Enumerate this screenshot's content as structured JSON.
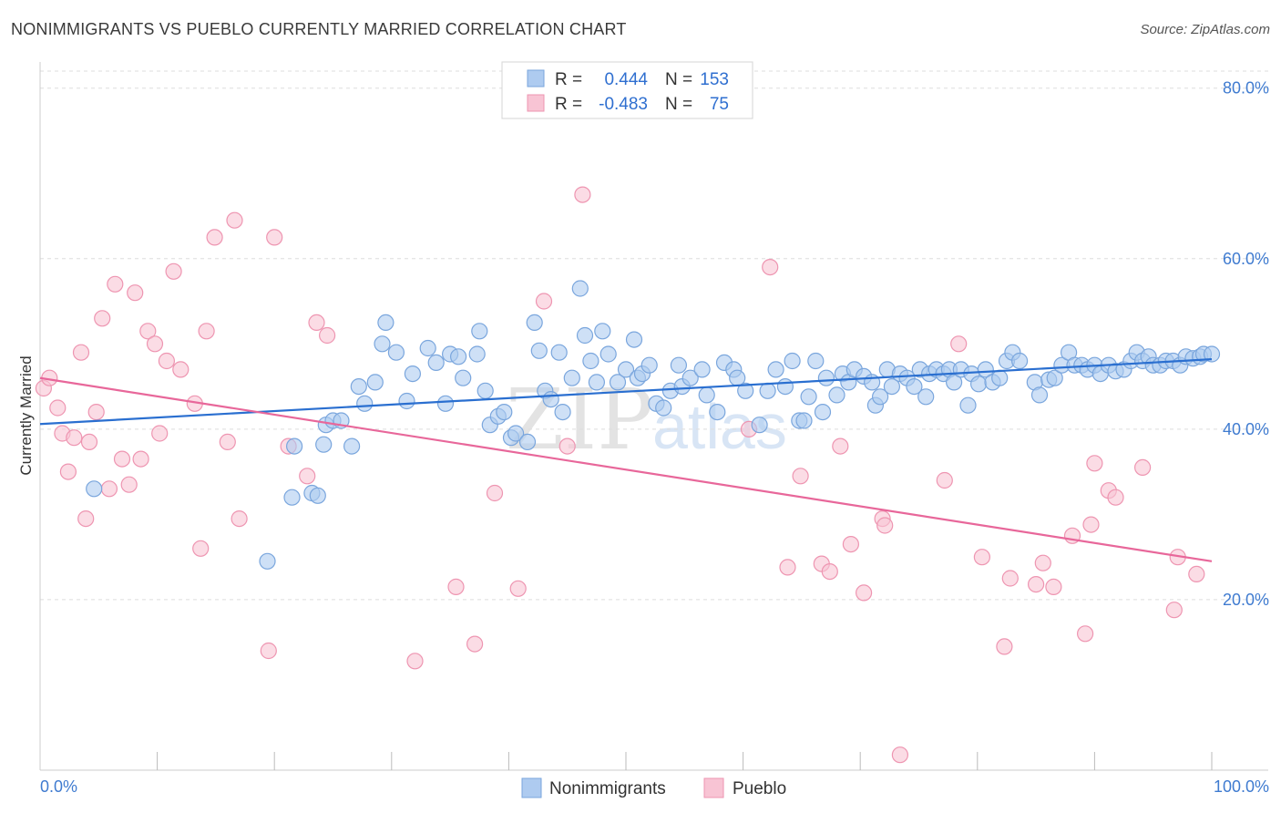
{
  "header": {
    "title": "NONIMMIGRANTS VS PUEBLO CURRENTLY MARRIED CORRELATION CHART",
    "source": "Source: ZipAtlas.com"
  },
  "legend_top": {
    "r_label": "R =",
    "n_label": "N =",
    "rows": [
      {
        "r": "0.444",
        "n": "153",
        "color": "#aecbf0"
      },
      {
        "r": "-0.483",
        "n": "75",
        "color": "#f8bdd0"
      }
    ]
  },
  "legend_bottom": [
    {
      "name": "Nonimmigrants",
      "color": "#aecbf0"
    },
    {
      "name": "Pueblo",
      "color": "#f8bdd0"
    }
  ],
  "watermark": {
    "zip": "ZIP",
    "atlas": "atlas"
  },
  "colors": {
    "blue_fill": "#aecbf0",
    "blue_stroke": "#7aa6dd",
    "blue_line": "#2a6fd0",
    "pink_fill": "#f8c4d4",
    "pink_stroke": "#ee95b1",
    "pink_line": "#e8679a",
    "grid": "#dddddd",
    "tick_text": "#3f7bd0"
  },
  "chart_data": {
    "type": "scatter",
    "title": "NONIMMIGRANTS VS PUEBLO CURRENTLY MARRIED CORRELATION CHART",
    "xlabel": "",
    "ylabel": "Currently Married",
    "xlim": [
      0,
      100
    ],
    "ylim": [
      0,
      82
    ],
    "x_tick_labels": [
      "0.0%",
      "100.0%"
    ],
    "y_ticks": [
      20,
      40,
      60,
      80
    ],
    "y_tick_labels": [
      "20.0%",
      "40.0%",
      "60.0%",
      "80.0%"
    ],
    "grid": true,
    "legend_position": "top-center",
    "series": [
      {
        "name": "Nonimmigrants",
        "r": 0.444,
        "n": 153,
        "trend": {
          "x": [
            0,
            100
          ],
          "y": [
            40.6,
            48.2
          ]
        },
        "points": [
          [
            4.6,
            33
          ],
          [
            19.4,
            24.5
          ],
          [
            21.5,
            32
          ],
          [
            21.7,
            38
          ],
          [
            23.2,
            32.5
          ],
          [
            23.7,
            32.2
          ],
          [
            24.2,
            38.2
          ],
          [
            24.4,
            40.5
          ],
          [
            25,
            41
          ],
          [
            25.7,
            41
          ],
          [
            26.6,
            38
          ],
          [
            27.2,
            45
          ],
          [
            27.7,
            43
          ],
          [
            28.6,
            45.5
          ],
          [
            29.2,
            50
          ],
          [
            29.5,
            52.5
          ],
          [
            30.4,
            49
          ],
          [
            31.3,
            43.3
          ],
          [
            31.8,
            46.5
          ],
          [
            33.1,
            49.5
          ],
          [
            33.8,
            47.8
          ],
          [
            34.6,
            43
          ],
          [
            35,
            48.8
          ],
          [
            35.7,
            48.5
          ],
          [
            36.1,
            46
          ],
          [
            37.3,
            48.8
          ],
          [
            37.5,
            51.5
          ],
          [
            38,
            44.5
          ],
          [
            38.4,
            40.5
          ],
          [
            39.1,
            41.5
          ],
          [
            39.6,
            42
          ],
          [
            40.2,
            39
          ],
          [
            40.6,
            39.5
          ],
          [
            41.6,
            38.5
          ],
          [
            42.2,
            52.5
          ],
          [
            42.6,
            49.2
          ],
          [
            43.1,
            44.5
          ],
          [
            43.6,
            43.5
          ],
          [
            44.3,
            49
          ],
          [
            44.6,
            42
          ],
          [
            45.4,
            46
          ],
          [
            46.1,
            56.5
          ],
          [
            46.5,
            51
          ],
          [
            47,
            48
          ],
          [
            47.5,
            45.5
          ],
          [
            48,
            51.5
          ],
          [
            48.5,
            48.8
          ],
          [
            49.3,
            45.5
          ],
          [
            50,
            47
          ],
          [
            50.7,
            50.5
          ],
          [
            51,
            46
          ],
          [
            51.4,
            46.5
          ],
          [
            52,
            47.5
          ],
          [
            52.6,
            43
          ],
          [
            53.2,
            42.5
          ],
          [
            53.8,
            44.5
          ],
          [
            54.5,
            47.5
          ],
          [
            54.8,
            45
          ],
          [
            55.5,
            46
          ],
          [
            56.5,
            47
          ],
          [
            56.9,
            44
          ],
          [
            57.8,
            42
          ],
          [
            58.4,
            47.8
          ],
          [
            59.2,
            47
          ],
          [
            59.5,
            46
          ],
          [
            60.2,
            44.5
          ],
          [
            61.4,
            40.5
          ],
          [
            62.1,
            44.5
          ],
          [
            62.8,
            47
          ],
          [
            63.6,
            45
          ],
          [
            64.2,
            48
          ],
          [
            64.8,
            41
          ],
          [
            65.2,
            41
          ],
          [
            65.6,
            43.8
          ],
          [
            66.2,
            48
          ],
          [
            66.8,
            42
          ],
          [
            67.1,
            46
          ],
          [
            68,
            44
          ],
          [
            68.5,
            46.5
          ],
          [
            69,
            45.5
          ],
          [
            69.5,
            47
          ],
          [
            70.3,
            46.2
          ],
          [
            71,
            45.5
          ],
          [
            71.3,
            42.8
          ],
          [
            71.7,
            43.8
          ],
          [
            72.3,
            47
          ],
          [
            72.7,
            45
          ],
          [
            73.4,
            46.5
          ],
          [
            74,
            46
          ],
          [
            74.6,
            45
          ],
          [
            75.1,
            47
          ],
          [
            75.6,
            43.8
          ],
          [
            75.9,
            46.5
          ],
          [
            76.5,
            47
          ],
          [
            77.1,
            46.5
          ],
          [
            77.6,
            47
          ],
          [
            78,
            45.5
          ],
          [
            78.6,
            47
          ],
          [
            79.2,
            42.8
          ],
          [
            79.5,
            46.5
          ],
          [
            80.1,
            45.3
          ],
          [
            80.7,
            47
          ],
          [
            81.3,
            45.5
          ],
          [
            81.9,
            46
          ],
          [
            82.5,
            48
          ],
          [
            83,
            49
          ],
          [
            83.6,
            48
          ],
          [
            84.9,
            45.5
          ],
          [
            85.3,
            44
          ],
          [
            86.1,
            45.8
          ],
          [
            86.6,
            46
          ],
          [
            87.2,
            47.5
          ],
          [
            87.8,
            49
          ],
          [
            88.3,
            47.5
          ],
          [
            88.9,
            47.5
          ],
          [
            89.4,
            47
          ],
          [
            90,
            47.5
          ],
          [
            90.5,
            46.5
          ],
          [
            91.2,
            47.5
          ],
          [
            91.8,
            46.8
          ],
          [
            92.5,
            47
          ],
          [
            93.1,
            48
          ],
          [
            93.6,
            49
          ],
          [
            94.1,
            48
          ],
          [
            94.6,
            48.5
          ],
          [
            95,
            47.5
          ],
          [
            95.6,
            47.5
          ],
          [
            96.1,
            48
          ],
          [
            96.7,
            48
          ],
          [
            97.3,
            47.5
          ],
          [
            97.8,
            48.5
          ],
          [
            98.4,
            48.3
          ],
          [
            99,
            48.5
          ],
          [
            99.3,
            48.8
          ],
          [
            100,
            48.8
          ]
        ]
      },
      {
        "name": "Pueblo",
        "r": -0.483,
        "n": 75,
        "trend": {
          "x": [
            0,
            100
          ],
          "y": [
            46,
            24.5
          ]
        },
        "points": [
          [
            0.3,
            44.8
          ],
          [
            0.8,
            46
          ],
          [
            1.5,
            42.5
          ],
          [
            1.9,
            39.5
          ],
          [
            2.4,
            35
          ],
          [
            2.9,
            39
          ],
          [
            3.5,
            49
          ],
          [
            3.9,
            29.5
          ],
          [
            4.2,
            38.5
          ],
          [
            4.8,
            42
          ],
          [
            5.3,
            53
          ],
          [
            5.9,
            33
          ],
          [
            6.4,
            57
          ],
          [
            7,
            36.5
          ],
          [
            7.6,
            33.5
          ],
          [
            8.1,
            56
          ],
          [
            8.6,
            36.5
          ],
          [
            9.2,
            51.5
          ],
          [
            9.8,
            50
          ],
          [
            10.2,
            39.5
          ],
          [
            10.8,
            48
          ],
          [
            11.4,
            58.5
          ],
          [
            12,
            47
          ],
          [
            13.2,
            43
          ],
          [
            13.7,
            26
          ],
          [
            14.2,
            51.5
          ],
          [
            14.9,
            62.5
          ],
          [
            16,
            38.5
          ],
          [
            16.6,
            64.5
          ],
          [
            17,
            29.5
          ],
          [
            19.5,
            14
          ],
          [
            20,
            62.5
          ],
          [
            21.2,
            38
          ],
          [
            22.8,
            34.5
          ],
          [
            23.6,
            52.5
          ],
          [
            24.5,
            51
          ],
          [
            32,
            12.8
          ],
          [
            35.5,
            21.5
          ],
          [
            37.1,
            14.8
          ],
          [
            38.8,
            32.5
          ],
          [
            40.8,
            21.3
          ],
          [
            43,
            55
          ],
          [
            45,
            38
          ],
          [
            46.3,
            67.5
          ],
          [
            60.5,
            40
          ],
          [
            62.3,
            59
          ],
          [
            63.8,
            23.8
          ],
          [
            64.9,
            34.5
          ],
          [
            66.7,
            24.2
          ],
          [
            67.4,
            23.3
          ],
          [
            68.3,
            38
          ],
          [
            69.2,
            26.5
          ],
          [
            70.3,
            20.8
          ],
          [
            71.9,
            29.5
          ],
          [
            72.1,
            28.7
          ],
          [
            73.4,
            1.8
          ],
          [
            77.2,
            34
          ],
          [
            78.4,
            50
          ],
          [
            80.4,
            25
          ],
          [
            82.3,
            14.5
          ],
          [
            82.8,
            22.5
          ],
          [
            85,
            21.8
          ],
          [
            85.6,
            24.3
          ],
          [
            86.5,
            21.5
          ],
          [
            88.1,
            27.5
          ],
          [
            89.2,
            16
          ],
          [
            89.7,
            28.8
          ],
          [
            90,
            36
          ],
          [
            91.2,
            32.8
          ],
          [
            91.8,
            32
          ],
          [
            94.1,
            35.5
          ],
          [
            96.8,
            18.8
          ],
          [
            97.1,
            25
          ],
          [
            98.7,
            23
          ]
        ]
      }
    ]
  }
}
